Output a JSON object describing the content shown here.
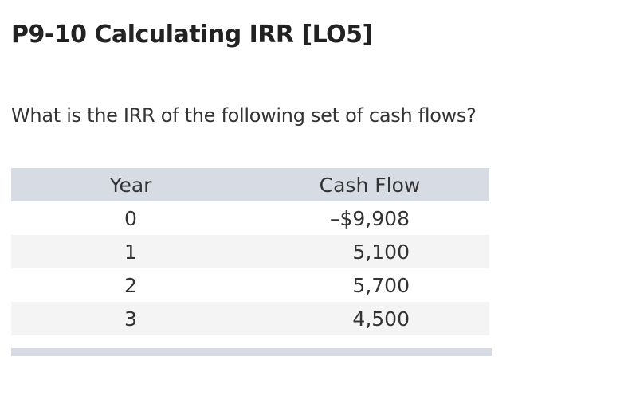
{
  "problem": {
    "title": "P9-10 Calculating IRR [LO5]",
    "question": "What is the IRR of the following set of cash flows?"
  },
  "table": {
    "headers": [
      "Year",
      "Cash Flow"
    ],
    "rows": [
      {
        "year": "0",
        "cash_flow": "–$9,908"
      },
      {
        "year": "1",
        "cash_flow": "5,100"
      },
      {
        "year": "2",
        "cash_flow": "5,700"
      },
      {
        "year": "3",
        "cash_flow": "4,500"
      }
    ]
  }
}
